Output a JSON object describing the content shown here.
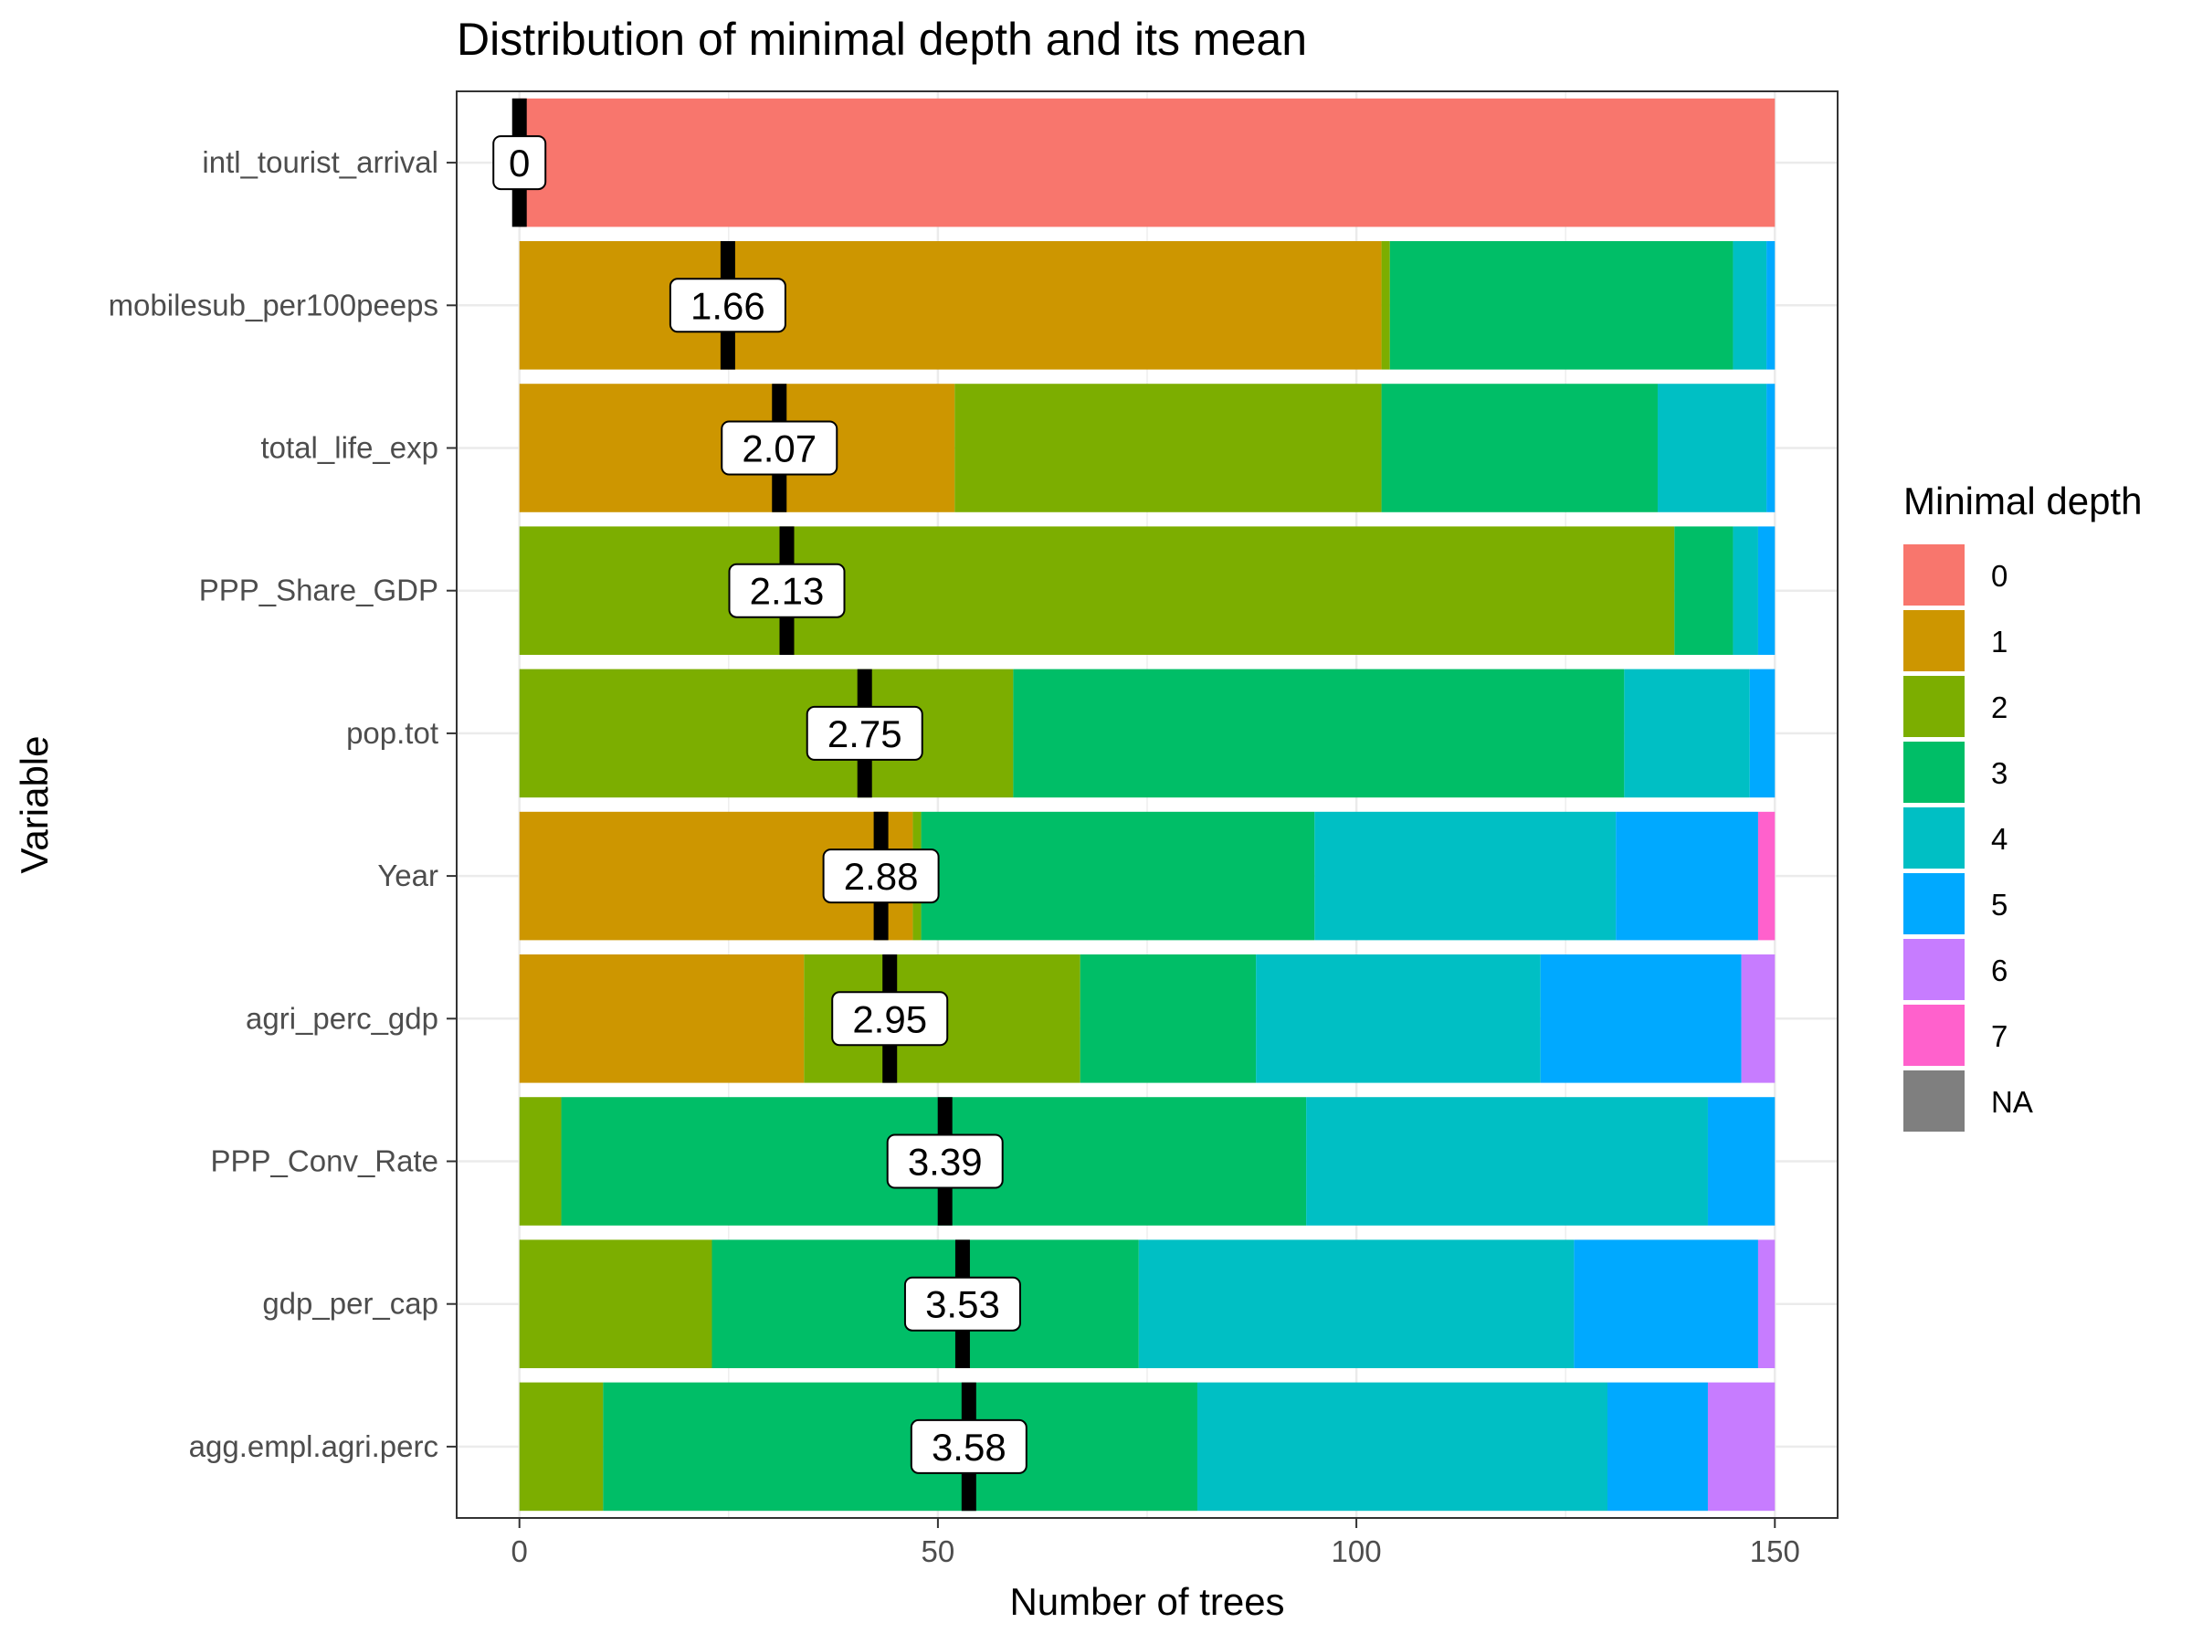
{
  "chart_data": {
    "type": "bar",
    "orientation": "horizontal",
    "stacked": true,
    "title": "Distribution of minimal depth and its mean",
    "xlabel": "Number of trees",
    "ylabel": "Variable",
    "xlim": [
      -7.5,
      157.5
    ],
    "xticks": [
      0,
      50,
      100,
      150
    ],
    "grid": true,
    "legend": {
      "title": "Minimal depth",
      "position": "right",
      "levels": [
        "0",
        "1",
        "2",
        "3",
        "4",
        "5",
        "6",
        "7",
        "NA"
      ],
      "colors": [
        "#F8766D",
        "#CD9600",
        "#7CAE00",
        "#00BE67",
        "#00BFC4",
        "#00A9FF",
        "#C77CFF",
        "#FF61CC",
        "#7F7F7F"
      ]
    },
    "categories": [
      "intl_tourist_arrival",
      "mobilesub_per100peeps",
      "total_life_exp",
      "PPP_Share_GDP",
      "pop.tot",
      "Year",
      "agri_perc_gdp",
      "PPP_Conv_Rate",
      "gdp_per_cap",
      "agg.empl.agri.perc"
    ],
    "counts": [
      [
        150,
        0,
        0,
        0,
        0,
        0,
        0,
        0,
        0
      ],
      [
        0,
        103,
        1,
        41,
        4,
        1,
        0,
        0,
        0
      ],
      [
        0,
        52,
        51,
        33,
        13,
        1,
        0,
        0,
        0
      ],
      [
        0,
        0,
        138,
        7,
        3,
        2,
        0,
        0,
        0
      ],
      [
        0,
        0,
        59,
        73,
        15,
        3,
        0,
        0,
        0
      ],
      [
        0,
        47,
        1,
        47,
        36,
        17,
        0,
        2,
        0
      ],
      [
        0,
        34,
        33,
        21,
        34,
        24,
        4,
        0,
        0
      ],
      [
        0,
        0,
        5,
        89,
        48,
        8,
        0,
        0,
        0
      ],
      [
        0,
        0,
        23,
        51,
        52,
        22,
        2,
        0,
        0
      ],
      [
        0,
        0,
        10,
        71,
        49,
        12,
        8,
        0,
        0
      ]
    ],
    "mean_labels": [
      "0",
      "1.66",
      "2.07",
      "2.13",
      "2.75",
      "2.88",
      "2.95",
      "3.39",
      "3.53",
      "3.58"
    ],
    "mean_values": [
      0,
      1.66,
      2.07,
      2.13,
      2.75,
      2.88,
      2.95,
      3.39,
      3.53,
      3.58
    ]
  }
}
